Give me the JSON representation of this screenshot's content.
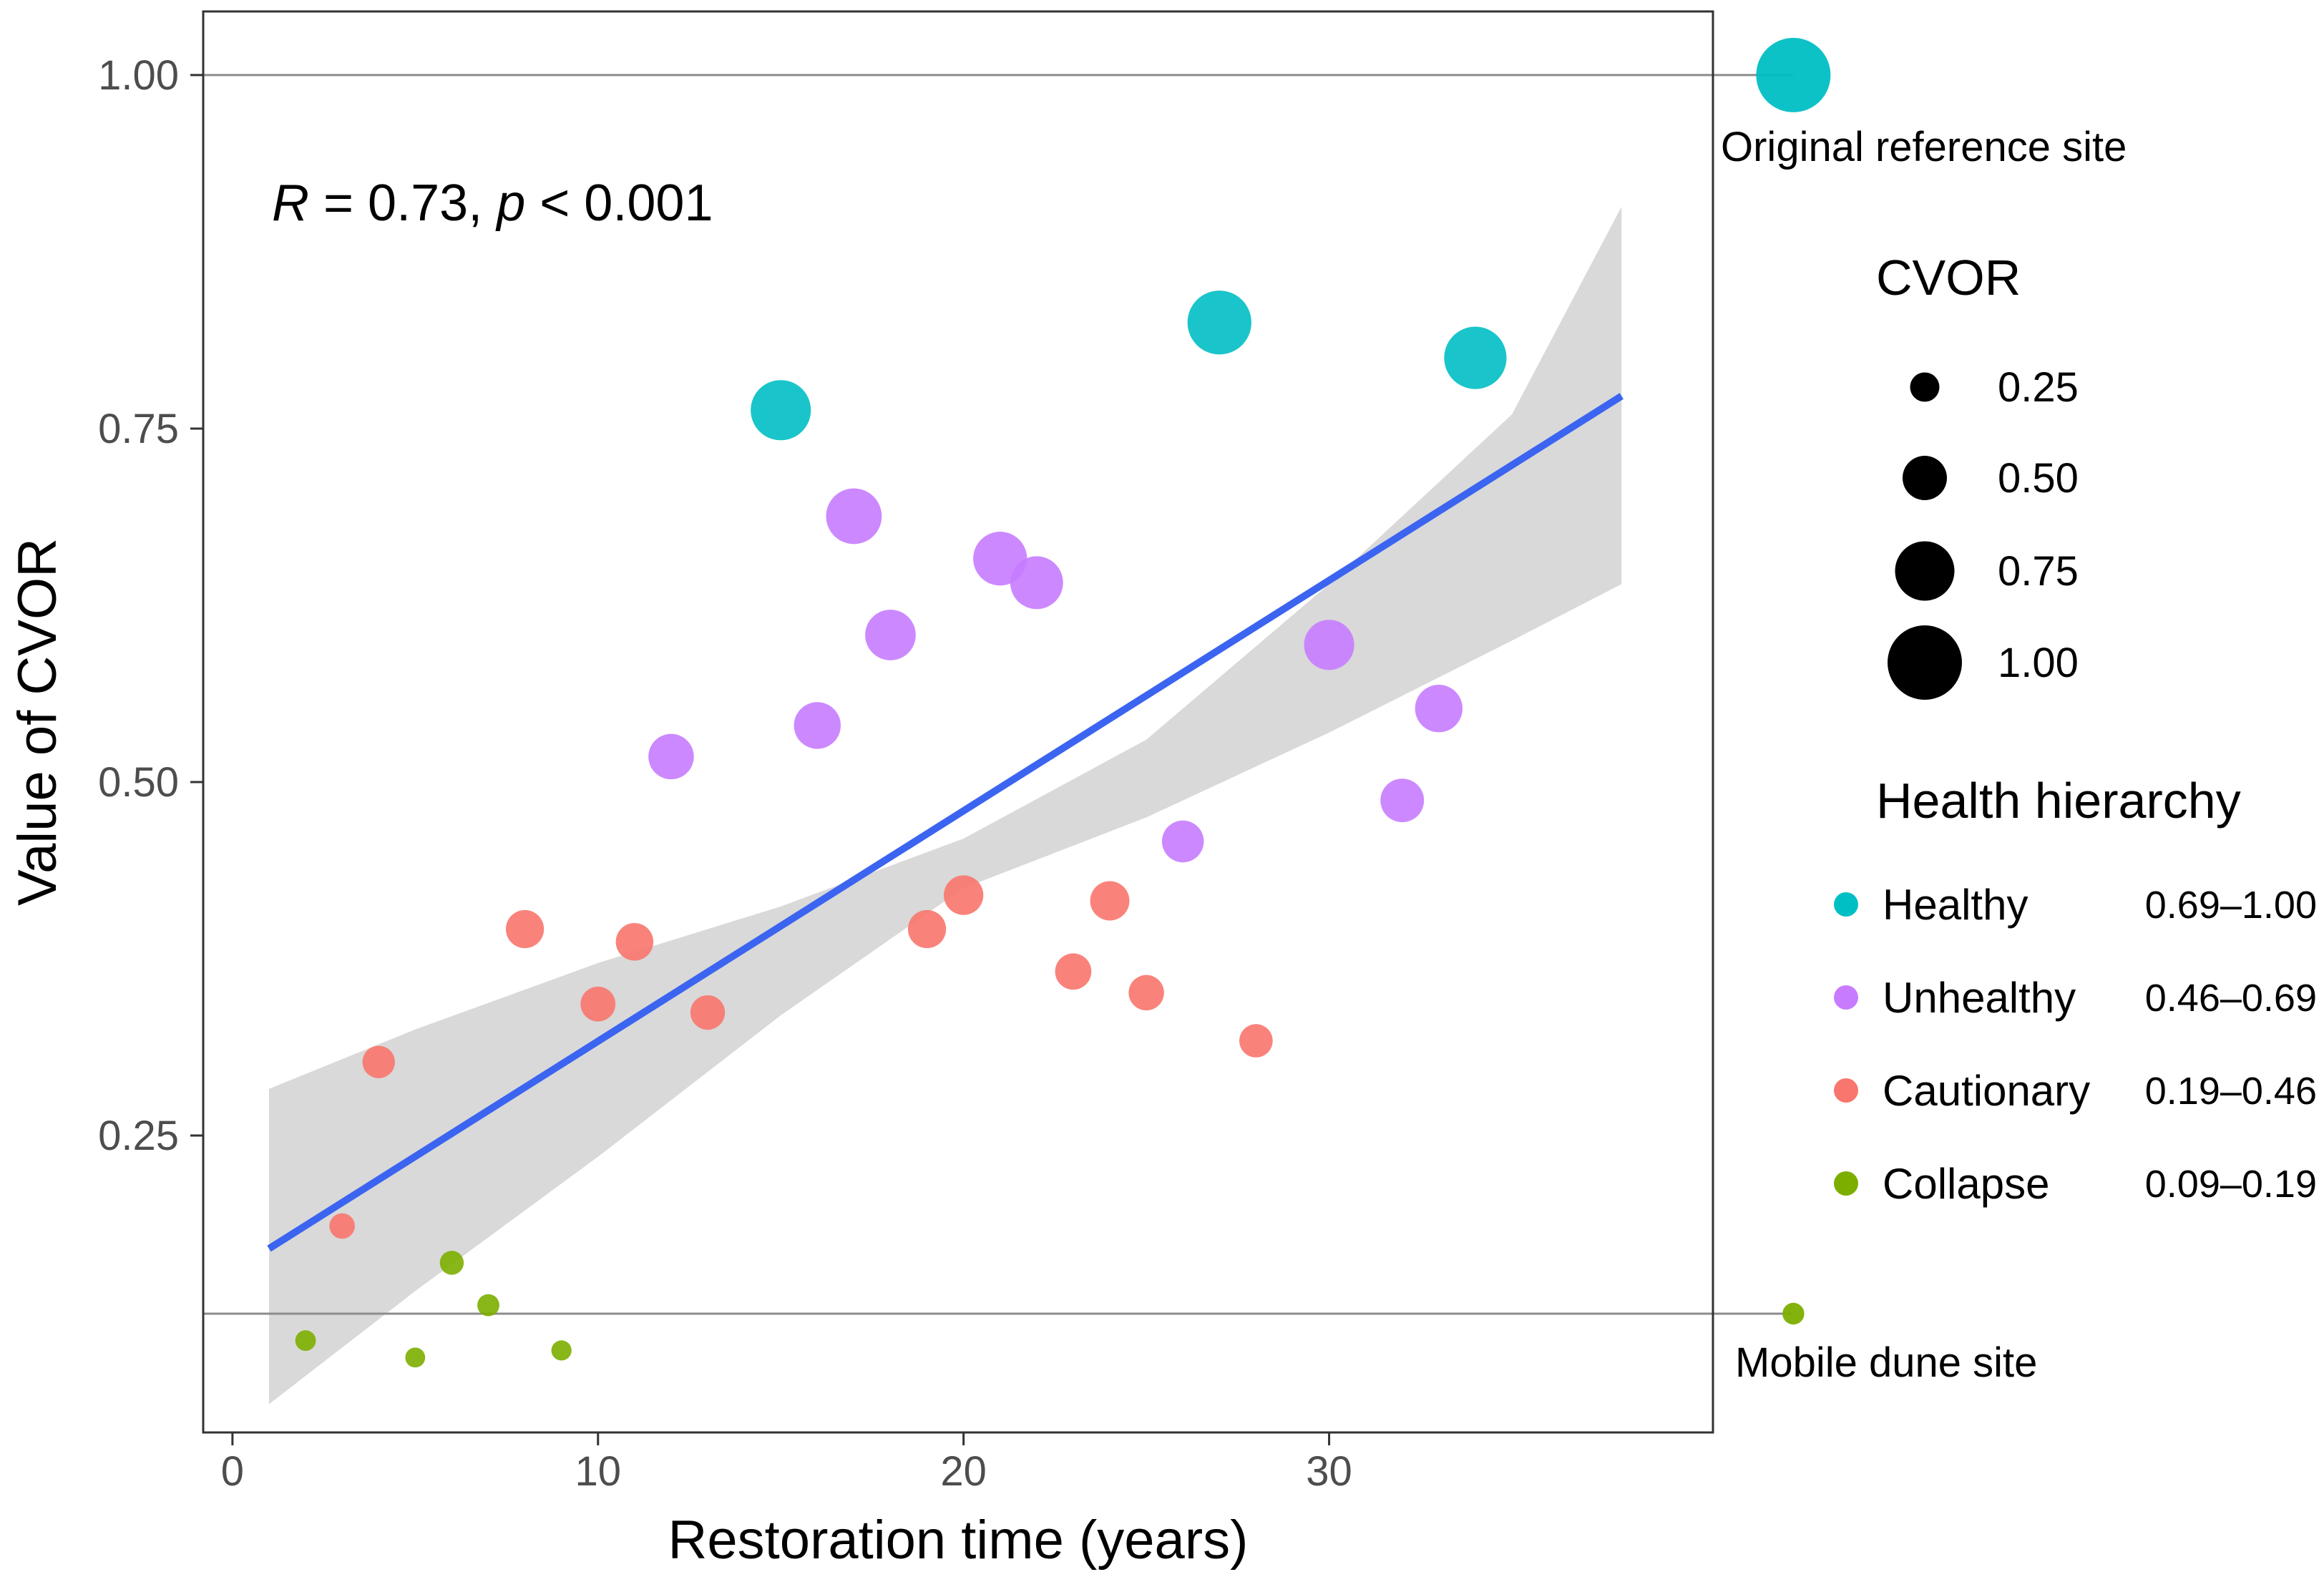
{
  "chart_data": {
    "type": "scatter",
    "title": "",
    "xlabel": "Restoration time (years)",
    "ylabel": "Value of CVOR",
    "xlim": [
      -0.8,
      40.5
    ],
    "ylim": [
      0.04,
      1.045
    ],
    "x_ticks": [
      0,
      10,
      20,
      30
    ],
    "y_ticks": [
      0.25,
      0.5,
      0.75,
      1.0
    ],
    "x_tick_labels": [
      "0",
      "10",
      "20",
      "30"
    ],
    "y_tick_labels": [
      "0.25",
      "0.50",
      "0.75",
      "1.00"
    ],
    "grid": false,
    "annotation": {
      "r_symbol": "R",
      "r_text": " = 0.73, ",
      "p_symbol": "p",
      "p_text": " < 0.001"
    },
    "regression": {
      "color": "#3B64F0",
      "line": [
        [
          1,
          0.17
        ],
        [
          38,
          0.773
        ]
      ],
      "ci_upper": [
        [
          1,
          0.283
        ],
        [
          5,
          0.325
        ],
        [
          10,
          0.372
        ],
        [
          15,
          0.412
        ],
        [
          20,
          0.46
        ],
        [
          25,
          0.53
        ],
        [
          30,
          0.64
        ],
        [
          35,
          0.76
        ],
        [
          38,
          0.907
        ]
      ],
      "ci_lower": [
        [
          1,
          0.06
        ],
        [
          5,
          0.14
        ],
        [
          10,
          0.235
        ],
        [
          15,
          0.335
        ],
        [
          20,
          0.425
        ],
        [
          25,
          0.475
        ],
        [
          30,
          0.535
        ],
        [
          35,
          0.6
        ],
        [
          38,
          0.64
        ]
      ]
    },
    "reference_lines": [
      {
        "y": 1.0,
        "label": "Original reference site",
        "category": "Healthy"
      },
      {
        "y": 0.124,
        "label": "Mobile dune site",
        "category": "Collapse"
      }
    ],
    "reference_marker_x": 42.7,
    "categories": [
      {
        "name": "Healthy",
        "range": "0.69–1.00",
        "color": "#00BFC4"
      },
      {
        "name": "Unhealthy",
        "range": "0.46–0.69",
        "color": "#C77CFF"
      },
      {
        "name": "Cautionary",
        "range": "0.19–0.46",
        "color": "#F8766D"
      },
      {
        "name": "Collapse",
        "range": "0.09–0.19",
        "color": "#7CAE00"
      }
    ],
    "size_legend": {
      "title": "CVOR",
      "values": [
        0.25,
        0.5,
        0.75,
        1.0
      ],
      "labels": [
        "0.25",
        "0.50",
        "0.75",
        "1.00"
      ]
    },
    "color_legend_title": "Health hierarchy",
    "series": [
      {
        "name": "Healthy",
        "points": [
          [
            15,
            0.763
          ],
          [
            27,
            0.825
          ],
          [
            34,
            0.8
          ]
        ]
      },
      {
        "name": "Unhealthy",
        "points": [
          [
            12,
            0.518
          ],
          [
            16,
            0.54
          ],
          [
            17,
            0.688
          ],
          [
            18,
            0.604
          ],
          [
            21,
            0.658
          ],
          [
            22,
            0.641
          ],
          [
            26,
            0.458
          ],
          [
            30,
            0.597
          ],
          [
            32,
            0.487
          ],
          [
            33,
            0.552
          ]
        ]
      },
      {
        "name": "Cautionary",
        "points": [
          [
            3,
            0.186
          ],
          [
            4,
            0.302
          ],
          [
            8,
            0.396
          ],
          [
            10,
            0.343
          ],
          [
            11,
            0.387
          ],
          [
            13,
            0.337
          ],
          [
            19,
            0.396
          ],
          [
            20,
            0.42
          ],
          [
            23,
            0.366
          ],
          [
            24,
            0.416
          ],
          [
            25,
            0.351
          ],
          [
            28,
            0.317
          ]
        ]
      },
      {
        "name": "Collapse",
        "points": [
          [
            2,
            0.105
          ],
          [
            5,
            0.093
          ],
          [
            6,
            0.16
          ],
          [
            7,
            0.13
          ],
          [
            9,
            0.098
          ]
        ]
      }
    ]
  }
}
